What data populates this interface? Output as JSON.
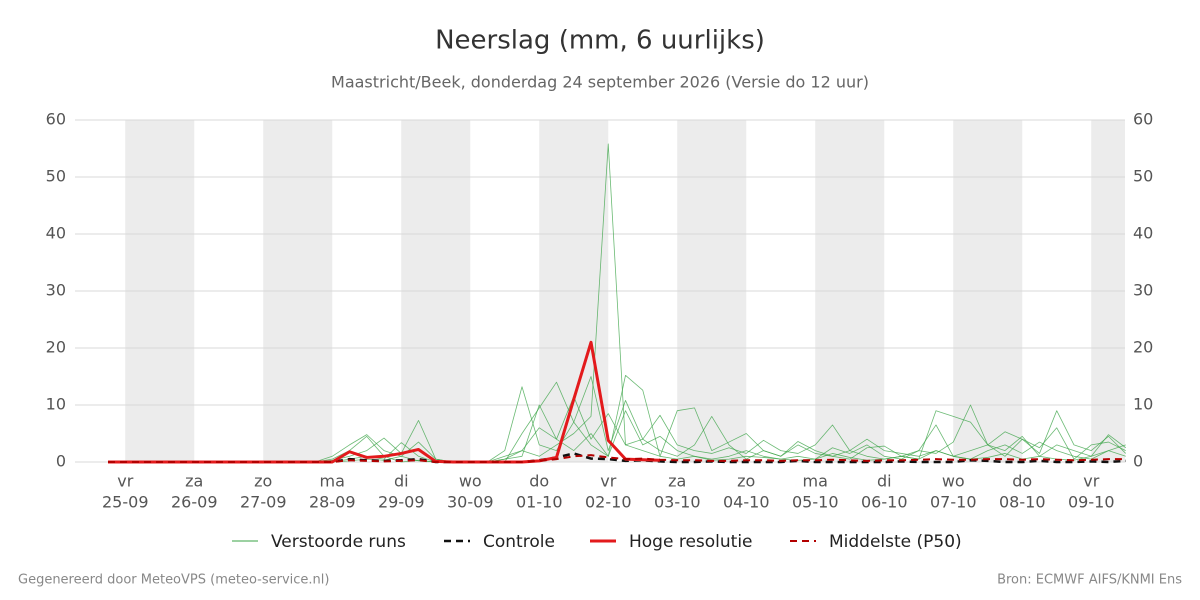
{
  "chart_data": {
    "type": "line",
    "title": "Neerslag (mm, 6 uurlijks)",
    "subtitle": "Maastricht/Beek, donderdag 24 september 2026 (Versie do 12 uur)",
    "footer_left": "Gegenereerd door MeteoVPS (meteo-service.nl)",
    "footer_right": "Bron: ECMWF AIFS/KNMI Ens",
    "categories": [
      null,
      "25-09",
      null,
      null,
      null,
      "26-09",
      null,
      null,
      null,
      "27-09",
      null,
      null,
      null,
      "28-09",
      null,
      null,
      null,
      "29-09",
      null,
      null,
      null,
      "30-09",
      null,
      null,
      null,
      "01-10",
      null,
      null,
      null,
      "02-10",
      null,
      null,
      null,
      "03-10",
      null,
      null,
      null,
      "04-10",
      null,
      null,
      null,
      "05-10",
      null,
      null,
      null,
      "06-10",
      null,
      null,
      null,
      "07-10",
      null,
      null,
      null,
      "08-10",
      null,
      null,
      null,
      "09-10",
      null,
      null
    ],
    "weekdays": [
      null,
      "vr",
      null,
      null,
      null,
      "za",
      null,
      null,
      null,
      "zo",
      null,
      null,
      null,
      "ma",
      null,
      null,
      null,
      "di",
      null,
      null,
      null,
      "wo",
      null,
      null,
      null,
      "do",
      null,
      null,
      null,
      "vr",
      null,
      null,
      null,
      "za",
      null,
      null,
      null,
      "zo",
      null,
      null,
      null,
      "ma",
      null,
      null,
      null,
      "di",
      null,
      null,
      null,
      "wo",
      null,
      null,
      null,
      "do",
      null,
      null,
      null,
      "vr",
      null,
      null
    ],
    "ylim": [
      0,
      60
    ],
    "yticks": [
      0,
      10,
      20,
      30,
      40,
      50,
      60
    ],
    "grid": true,
    "ensemble": {
      "name": "Verstoorde runs",
      "color": "#3aa346",
      "members": [
        [
          0,
          0,
          0,
          0,
          0,
          0,
          0,
          0,
          0,
          0,
          0,
          0,
          0,
          0.5,
          2,
          4.5,
          1,
          0,
          0.3,
          0,
          0,
          0,
          0,
          0.5,
          2,
          1,
          3,
          5,
          8,
          55.8,
          3,
          2,
          1,
          0.5,
          1,
          0.3,
          0.5,
          1,
          0.8,
          0.5,
          0.3,
          0.5,
          1.5,
          0.8,
          0.3,
          0.5,
          1,
          0.5,
          2,
          1,
          0.5,
          0.8,
          1.5,
          0.5,
          1,
          0.5,
          0.3,
          1,
          2,
          1
        ],
        [
          0,
          0,
          0,
          0,
          0,
          0,
          0,
          0,
          0,
          0,
          0,
          0,
          0,
          1,
          3,
          4.8,
          2,
          1,
          3.5,
          0.5,
          0,
          0,
          0,
          2,
          13.2,
          3,
          2,
          7,
          15,
          2,
          10.8,
          4,
          2,
          1,
          3,
          8,
          3,
          0.5,
          2,
          1,
          3,
          1.5,
          1,
          2,
          1,
          0.5,
          1,
          2,
          1.5,
          3.5,
          10,
          3,
          2,
          4.5,
          1,
          3,
          2,
          1,
          4.8,
          2.5
        ],
        [
          0,
          0,
          0,
          0,
          0,
          0,
          0,
          0,
          0,
          0,
          0,
          0,
          0,
          0.3,
          1,
          2,
          4.2,
          1.5,
          7.3,
          0.5,
          0,
          0,
          0,
          0,
          5,
          9.5,
          14,
          7,
          3,
          1,
          15.2,
          12.6,
          1,
          9,
          9.5,
          2,
          3.5,
          5,
          2,
          1,
          3.6,
          2,
          1,
          0.5,
          2.5,
          2.8,
          1,
          0.5,
          9,
          8,
          7,
          3,
          1,
          4,
          2.5,
          6,
          0.5,
          3,
          3.5,
          2
        ],
        [
          0,
          0,
          0,
          0,
          0,
          0,
          0,
          0,
          0,
          0,
          0,
          0,
          0,
          0,
          0.5,
          1,
          0.5,
          3.4,
          1,
          0,
          0,
          0,
          0,
          1,
          2,
          6,
          4,
          11.5,
          4,
          8.5,
          3,
          4,
          8.2,
          3,
          2,
          1.5,
          2.5,
          1.5,
          3.8,
          2,
          1.5,
          3,
          6.5,
          2,
          4,
          2,
          1.5,
          1,
          2,
          1,
          2,
          3,
          5.3,
          4,
          1.5,
          9,
          3,
          2,
          4.5,
          1.5
        ],
        [
          0,
          0,
          0,
          0,
          0,
          0,
          0,
          0,
          0,
          0,
          0,
          0,
          0,
          0,
          0.2,
          0.5,
          0.3,
          1,
          0.2,
          0,
          0,
          0,
          0,
          0.5,
          1,
          10,
          4,
          2,
          5,
          1,
          9,
          3,
          4.5,
          2,
          1,
          0.5,
          1,
          2,
          1,
          0.5,
          1,
          0.5,
          2.5,
          1.5,
          3,
          1,
          0.5,
          2,
          6.5,
          1,
          0.5,
          2,
          3,
          1.5,
          3.5,
          2,
          1,
          0.5,
          2,
          3
        ]
      ]
    },
    "series": [
      {
        "name": "Controle",
        "color": "#111111",
        "dashed": true,
        "width": 2.5,
        "values": [
          0,
          0,
          0,
          0,
          0,
          0,
          0,
          0,
          0,
          0,
          0,
          0,
          0,
          0,
          0.5,
          0.3,
          0.2,
          0.3,
          0.5,
          0,
          0,
          0,
          0,
          0,
          0,
          0.3,
          0.8,
          1.5,
          0.6,
          0.5,
          0.2,
          0.3,
          0.1,
          0,
          0,
          0.1,
          0,
          0,
          0,
          0,
          0.2,
          0,
          0,
          0,
          0,
          0,
          0.1,
          0,
          0,
          0,
          0.3,
          0.2,
          0,
          0,
          0.2,
          0,
          0,
          0.1,
          0,
          0.2
        ]
      },
      {
        "name": "Hoge resolutie",
        "color": "#e31a1c",
        "dashed": false,
        "width": 3,
        "values": [
          0,
          0,
          0,
          0,
          0,
          0,
          0,
          0,
          0,
          0,
          0,
          0,
          0,
          0,
          1.8,
          0.8,
          1,
          1.5,
          2.2,
          0.1,
          0,
          0,
          0,
          0,
          0,
          0.2,
          0.8,
          11,
          21,
          3.8,
          0.5,
          0.4,
          0.3,
          null,
          null,
          null,
          null,
          null,
          null,
          null,
          null,
          null,
          null,
          null,
          null,
          null,
          null,
          null,
          null,
          null,
          null,
          null,
          null,
          null,
          null,
          null,
          null,
          null,
          null,
          null
        ]
      },
      {
        "name": "Middelste (P50)",
        "color": "#b30000",
        "dashed": true,
        "width": 2,
        "values": [
          0,
          0,
          0,
          0,
          0,
          0,
          0,
          0,
          0,
          0,
          0,
          0,
          0,
          0,
          0.3,
          0.2,
          0.1,
          0.2,
          0.3,
          0,
          0,
          0,
          0,
          0,
          0,
          0.2,
          0.5,
          1,
          1.2,
          0.8,
          0.5,
          0.6,
          0.4,
          0.3,
          0.3,
          0.2,
          0.2,
          0.3,
          0.3,
          0.2,
          0.3,
          0.3,
          0.4,
          0.3,
          0.2,
          0.3,
          0.3,
          0.4,
          0.5,
          0.4,
          0.4,
          0.5,
          0.5,
          0.4,
          0.5,
          0.4,
          0.3,
          0.4,
          0.5,
          0.5
        ]
      }
    ]
  }
}
